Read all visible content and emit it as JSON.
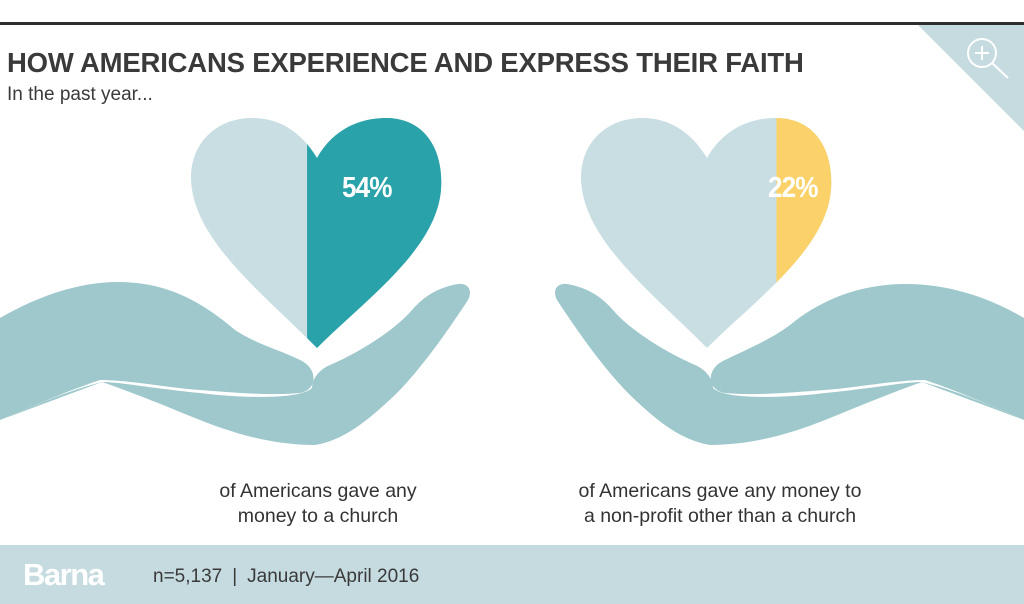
{
  "header": {
    "title": "HOW AMERICANS EXPERIENCE AND EXPRESS THEIR FAITH",
    "subtitle": "In the past year..."
  },
  "zoom_control": {
    "icon": "zoom-in-icon"
  },
  "stats": [
    {
      "percent_label": "54%",
      "value": 54,
      "caption_line1": "of Americans gave any",
      "caption_line2": "money to a church",
      "fill_color": "#2aa2a9",
      "base_color": "#c8dee3"
    },
    {
      "percent_label": "22%",
      "value": 22,
      "caption_line1": "of Americans gave any money to",
      "caption_line2": "a non-profit other than a church",
      "fill_color": "#fbd26a",
      "base_color": "#c8dee3"
    }
  ],
  "colors": {
    "hand": "#9ec8cc",
    "footer_bg": "#c5dbe0",
    "corner": "#c5dbe0",
    "text": "#3a3a3a"
  },
  "footer": {
    "brand": "Barna",
    "sample": "n=5,137",
    "separator": "|",
    "date_range": "January—April 2016"
  }
}
